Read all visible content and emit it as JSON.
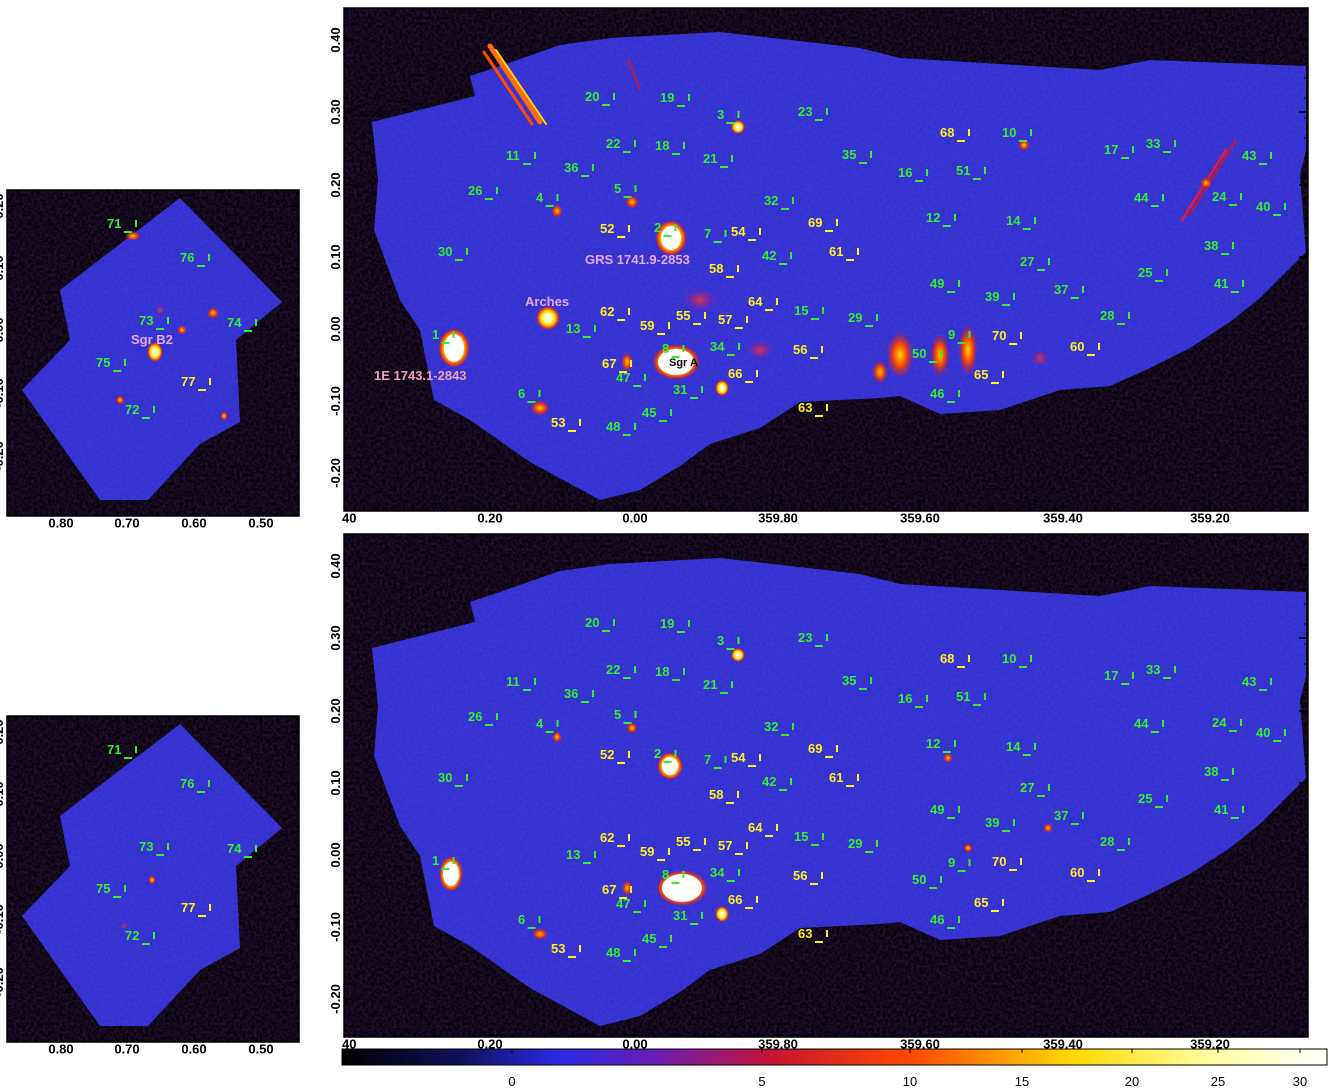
{
  "panels": {
    "main_top": {
      "x_ticks": [
        "0.20",
        "0.00",
        "359.80",
        "359.60",
        "359.40",
        "359.20"
      ],
      "x_edge_label": "40",
      "y_ticks": [
        "0.40",
        "0.30",
        "0.20",
        "0.10",
        "0.00",
        "-0.10",
        "-0.20"
      ]
    },
    "main_bottom": {
      "x_ticks": [
        "0.20",
        "0.00",
        "359.80",
        "359.60",
        "359.40",
        "359.20"
      ],
      "x_edge_label": "40",
      "y_ticks": [
        "0.40",
        "0.30",
        "0.20",
        "0.10",
        "0.00",
        "-0.10",
        "-0.20"
      ]
    },
    "side_top": {
      "x_ticks": [
        "0.80",
        "0.70",
        "0.60",
        "0.50"
      ],
      "y_ticks": [
        "0.20",
        "0.10",
        "0.00",
        "-0.10",
        "-0.20"
      ]
    },
    "side_bottom": {
      "x_ticks": [
        "0.80",
        "0.70",
        "0.60",
        "0.50"
      ],
      "y_ticks": [
        "0.20",
        "0.10",
        "0.00",
        "-0.10",
        "-0.20"
      ]
    }
  },
  "named_sources": {
    "grs": "GRS 1741.9-2853",
    "arches": "Arches",
    "e1743": "1E 1743.1-2843",
    "sgra": "Sgr A",
    "sgrb2": "Sgr B2"
  },
  "colorbar": {
    "ticks": [
      "0",
      "5",
      "10",
      "15",
      "20",
      "25",
      "30"
    ],
    "stops": [
      "#000000",
      "#10105a",
      "#2a2ae6",
      "#6a1cb0",
      "#c81630",
      "#ff4a00",
      "#ffd800",
      "#ffffa0",
      "#ffffff"
    ]
  },
  "colors": {
    "background": "#000000",
    "field": "#2a32d4",
    "green_label": "#33ee33",
    "yellow_label": "#ffee22",
    "named_label": "#e8a8e8"
  },
  "sources": {
    "green": [
      "1",
      "2",
      "3",
      "4",
      "5",
      "6",
      "7",
      "8",
      "9",
      "10",
      "11",
      "12",
      "13",
      "14",
      "15",
      "16",
      "17",
      "18",
      "19",
      "20",
      "21",
      "22",
      "23",
      "24",
      "25",
      "26",
      "27",
      "28",
      "29",
      "30",
      "31",
      "32",
      "33",
      "34",
      "35",
      "36",
      "37",
      "38",
      "39",
      "40",
      "41",
      "42",
      "43",
      "44",
      "45",
      "46",
      "47",
      "48",
      "49",
      "50",
      "51"
    ],
    "yellow": [
      "52",
      "53",
      "54",
      "55",
      "56",
      "57",
      "58",
      "59",
      "60",
      "61",
      "62",
      "63",
      "64",
      "65",
      "66",
      "67",
      "68",
      "69",
      "70"
    ],
    "side_green": [
      "71",
      "72",
      "73",
      "74",
      "75",
      "76"
    ],
    "side_yellow": [
      "77"
    ]
  }
}
